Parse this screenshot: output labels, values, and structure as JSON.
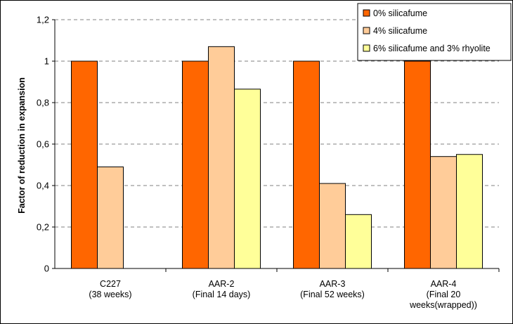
{
  "chart_data": {
    "type": "bar",
    "categories": [
      [
        "C227",
        "(38 weeks)"
      ],
      [
        "AAR-2",
        "(Final 14 days)"
      ],
      [
        "AAR-3",
        "(Final 52 weeks)"
      ],
      [
        "AAR-4",
        "(Final 20",
        "weeks(wrapped))"
      ]
    ],
    "series": [
      {
        "name": "0% silicafume",
        "color": "#ff6600",
        "values": [
          1.0,
          1.0,
          1.0,
          1.0
        ]
      },
      {
        "name": "4% silicafume",
        "color": "#ffcc99",
        "values": [
          0.49,
          1.07,
          0.41,
          0.54
        ]
      },
      {
        "name": "6% silicafume and 3% rhyolite",
        "color": "#ffff99",
        "values": [
          null,
          0.865,
          0.26,
          0.55
        ]
      }
    ],
    "title": "",
    "xlabel": "",
    "ylabel": "Factor of reduction in expansion",
    "ylim": [
      0,
      1.2
    ],
    "yticks": [
      "0",
      "0,2",
      "0,4",
      "0,6",
      "0,8",
      "1",
      "1,2"
    ],
    "ytick_values": [
      0,
      0.2,
      0.4,
      0.6,
      0.8,
      1.0,
      1.2
    ],
    "grid": true,
    "legend": "top-right"
  }
}
